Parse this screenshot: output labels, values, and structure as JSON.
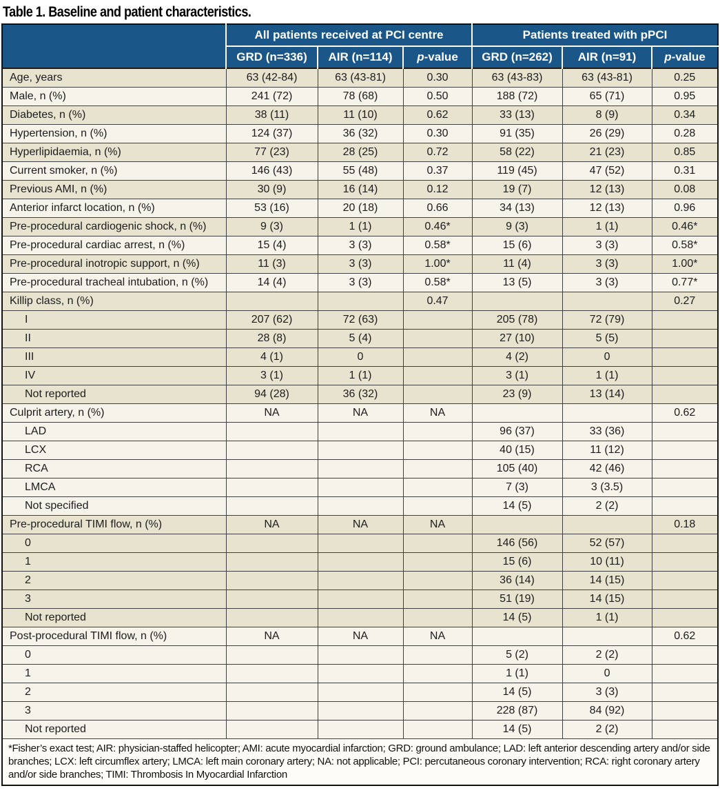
{
  "title": "Table 1. Baseline and patient characteristics.",
  "header": {
    "group1": "All patients received at PCI centre",
    "group2": "Patients treated with pPCI",
    "columns": [
      "GRD (n=336)",
      "AIR (n=114)",
      "p-value",
      "GRD (n=262)",
      "AIR (n=91)",
      "p-value"
    ],
    "p_italic": "p",
    "p_rest": "-value"
  },
  "rows": [
    {
      "label": "Age, years",
      "indent": false,
      "shade": "dark",
      "cells": [
        "63 (42-84)",
        "63 (43-81)",
        "0.30",
        "63 (43-83)",
        "63 (43-81)",
        "0.25"
      ]
    },
    {
      "label": "Male, n (%)",
      "indent": false,
      "shade": "light",
      "cells": [
        "241 (72)",
        "78 (68)",
        "0.50",
        "188 (72)",
        "65 (71)",
        "0.95"
      ]
    },
    {
      "label": "Diabetes, n (%)",
      "indent": false,
      "shade": "dark",
      "cells": [
        "38 (11)",
        "11 (10)",
        "0.62",
        "33 (13)",
        "8 (9)",
        "0.34"
      ]
    },
    {
      "label": "Hypertension, n (%)",
      "indent": false,
      "shade": "light",
      "cells": [
        "124 (37)",
        "36 (32)",
        "0.30",
        "91 (35)",
        "26 (29)",
        "0.28"
      ]
    },
    {
      "label": "Hyperlipidaemia, n (%)",
      "indent": false,
      "shade": "dark",
      "cells": [
        "77 (23)",
        "28 (25)",
        "0.72",
        "58 (22)",
        "21 (23)",
        "0.85"
      ]
    },
    {
      "label": "Current smoker, n (%)",
      "indent": false,
      "shade": "light",
      "cells": [
        "146 (43)",
        "55 (48)",
        "0.37",
        "119 (45)",
        "47 (52)",
        "0.31"
      ]
    },
    {
      "label": "Previous AMI, n (%)",
      "indent": false,
      "shade": "dark",
      "cells": [
        "30 (9)",
        "16 (14)",
        "0.12",
        "19 (7)",
        "12 (13)",
        "0.08"
      ]
    },
    {
      "label": "Anterior infarct location, n (%)",
      "indent": false,
      "shade": "light",
      "cells": [
        "53 (16)",
        "20 (18)",
        "0.66",
        "34 (13)",
        "12 (13)",
        "0.96"
      ]
    },
    {
      "label": "Pre-procedural cardiogenic shock, n (%)",
      "indent": false,
      "shade": "dark",
      "cells": [
        "9 (3)",
        "1 (1)",
        "0.46*",
        "9 (3)",
        "1 (1)",
        "0.46*"
      ]
    },
    {
      "label": "Pre-procedural cardiac arrest, n (%)",
      "indent": false,
      "shade": "light",
      "cells": [
        "15 (4)",
        "3 (3)",
        "0.58*",
        "15 (6)",
        "3 (3)",
        "0.58*"
      ]
    },
    {
      "label": "Pre-procedural inotropic support, n (%)",
      "indent": false,
      "shade": "dark",
      "cells": [
        "11 (3)",
        "3 (3)",
        "1.00*",
        "11 (4)",
        "3 (3)",
        "1.00*"
      ]
    },
    {
      "label": "Pre-procedural tracheal intubation, n (%)",
      "indent": false,
      "shade": "light",
      "cells": [
        "14 (4)",
        "3 (3)",
        "0.58*",
        "13 (5)",
        "3 (3)",
        "0.77*"
      ]
    },
    {
      "label": "Killip class, n (%)",
      "indent": false,
      "shade": "dark",
      "cells": [
        "",
        "",
        "0.47",
        "",
        "",
        "0.27"
      ]
    },
    {
      "label": "I",
      "indent": true,
      "shade": "dark",
      "cells": [
        "207 (62)",
        "72 (63)",
        "",
        "205 (78)",
        "72 (79)",
        ""
      ]
    },
    {
      "label": "II",
      "indent": true,
      "shade": "dark",
      "cells": [
        "28 (8)",
        "5 (4)",
        "",
        "27 (10)",
        "5 (5)",
        ""
      ]
    },
    {
      "label": "III",
      "indent": true,
      "shade": "dark",
      "cells": [
        "4 (1)",
        "0",
        "",
        "4 (2)",
        "0",
        ""
      ]
    },
    {
      "label": "IV",
      "indent": true,
      "shade": "dark",
      "cells": [
        "3 (1)",
        "1 (1)",
        "",
        "3 (1)",
        "1 (1)",
        ""
      ]
    },
    {
      "label": "Not reported",
      "indent": true,
      "shade": "dark",
      "cells": [
        "94 (28)",
        "36 (32)",
        "",
        "23 (9)",
        "13 (14)",
        ""
      ]
    },
    {
      "label": "Culprit artery, n (%)",
      "indent": false,
      "shade": "light",
      "cells": [
        "NA",
        "NA",
        "NA",
        "",
        "",
        "0.62"
      ]
    },
    {
      "label": "LAD",
      "indent": true,
      "shade": "light",
      "cells": [
        "",
        "",
        "",
        "96 (37)",
        "33 (36)",
        ""
      ]
    },
    {
      "label": "LCX",
      "indent": true,
      "shade": "light",
      "cells": [
        "",
        "",
        "",
        "40 (15)",
        "11 (12)",
        ""
      ]
    },
    {
      "label": "RCA",
      "indent": true,
      "shade": "light",
      "cells": [
        "",
        "",
        "",
        "105 (40)",
        "42 (46)",
        ""
      ]
    },
    {
      "label": "LMCA",
      "indent": true,
      "shade": "light",
      "cells": [
        "",
        "",
        "",
        "7 (3)",
        "3 (3.5)",
        ""
      ]
    },
    {
      "label": "Not specified",
      "indent": true,
      "shade": "light",
      "cells": [
        "",
        "",
        "",
        "14 (5)",
        "2 (2)",
        ""
      ]
    },
    {
      "label": "Pre-procedural TIMI flow, n (%)",
      "indent": false,
      "shade": "dark",
      "cells": [
        "NA",
        "NA",
        "NA",
        "",
        "",
        "0.18"
      ]
    },
    {
      "label": "0",
      "indent": true,
      "shade": "dark",
      "cells": [
        "",
        "",
        "",
        "146 (56)",
        "52 (57)",
        ""
      ]
    },
    {
      "label": "1",
      "indent": true,
      "shade": "dark",
      "cells": [
        "",
        "",
        "",
        "15 (6)",
        "10 (11)",
        ""
      ]
    },
    {
      "label": "2",
      "indent": true,
      "shade": "dark",
      "cells": [
        "",
        "",
        "",
        "36 (14)",
        "14 (15)",
        ""
      ]
    },
    {
      "label": "3",
      "indent": true,
      "shade": "dark",
      "cells": [
        "",
        "",
        "",
        "51 (19)",
        "14 (15)",
        ""
      ]
    },
    {
      "label": "Not reported",
      "indent": true,
      "shade": "dark",
      "cells": [
        "",
        "",
        "",
        "14 (5)",
        "1 (1)",
        ""
      ]
    },
    {
      "label": "Post-procedural TIMI flow, n (%)",
      "indent": false,
      "shade": "light",
      "cells": [
        "NA",
        "NA",
        "NA",
        "",
        "",
        "0.62"
      ]
    },
    {
      "label": "0",
      "indent": true,
      "shade": "light",
      "cells": [
        "",
        "",
        "",
        "5 (2)",
        "2 (2)",
        ""
      ]
    },
    {
      "label": "1",
      "indent": true,
      "shade": "light",
      "cells": [
        "",
        "",
        "",
        "1 (1)",
        "0",
        ""
      ]
    },
    {
      "label": "2",
      "indent": true,
      "shade": "light",
      "cells": [
        "",
        "",
        "",
        "14 (5)",
        "3 (3)",
        ""
      ]
    },
    {
      "label": "3",
      "indent": true,
      "shade": "light",
      "cells": [
        "",
        "",
        "",
        "228 (87)",
        "84 (92)",
        ""
      ]
    },
    {
      "label": "Not reported",
      "indent": true,
      "shade": "light",
      "cells": [
        "",
        "",
        "",
        "14 (5)",
        "2 (2)",
        ""
      ]
    }
  ],
  "footnote": "*Fisher’s exact test; AIR: physician-staffed helicopter; AMI: acute myocardial infarction; GRD: ground ambulance; LAD: left anterior descending artery and/or side branches; LCX: left circumflex artery; LMCA: left main coronary artery; NA: not applicable; PCI: percutaneous coronary intervention; RCA: right coronary artery and/or side branches; TIMI: Thrombosis In Myocardial Infarction",
  "colors": {
    "header_bg": "#1a5788",
    "row_dark": "#e7e3cf",
    "row_light": "#f5f3ea",
    "grid_line": "#3f3f3f",
    "outer_border": "#111111"
  }
}
